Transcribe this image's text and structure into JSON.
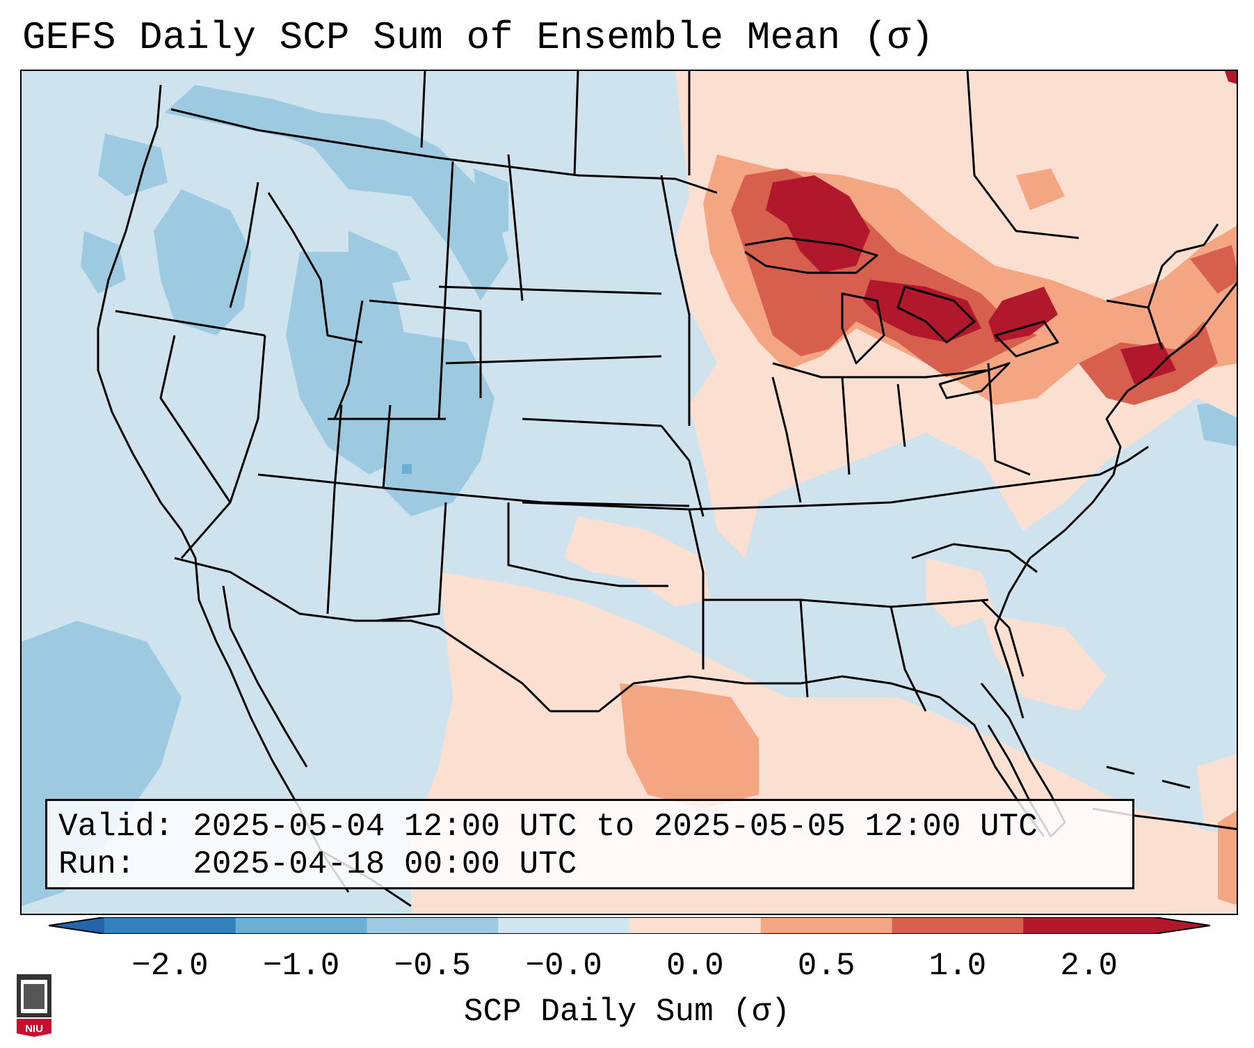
{
  "title": "GEFS Daily SCP Sum of Ensemble Mean (σ)",
  "info": {
    "valid_label": "Valid:",
    "valid_value": "2025-05-04 12:00 UTC to 2025-05-05 12:00 UTC",
    "run_label": "Run:",
    "run_value": "2025-04-18 00:00 UTC"
  },
  "colorbar": {
    "label": "SCP Daily Sum (σ)",
    "ticks": [
      "−2.0",
      "−1.0",
      "−0.5",
      "−0.0",
      "0.0",
      "0.5",
      "1.0",
      "2.0"
    ],
    "colors": [
      "#3182bd",
      "#6baed6",
      "#9ecae1",
      "#d1e5f0",
      "#fbe0d2",
      "#f4a582",
      "#d6604d",
      "#b2182b"
    ],
    "extend_low_color": "#2166ac",
    "extend_high_color": "#b2182b"
  },
  "map": {
    "background_color": "#cfe3ef",
    "region": "Contiguous United States, southern Canada, northern Mexico, Gulf of Mexico",
    "features": {
      "great_lakes": "strongly positive (>1.0 σ)",
      "northeast": "positive (0.5 to 1.0 σ)",
      "gulf_coast_texas": "positive (0.5 to 1.0 σ)",
      "rockies_great_basin": "negative (-1.0 to -0.5 σ)",
      "central_plains": "near zero"
    }
  },
  "logo": {
    "text": "NIU",
    "color": "#c8102e"
  }
}
